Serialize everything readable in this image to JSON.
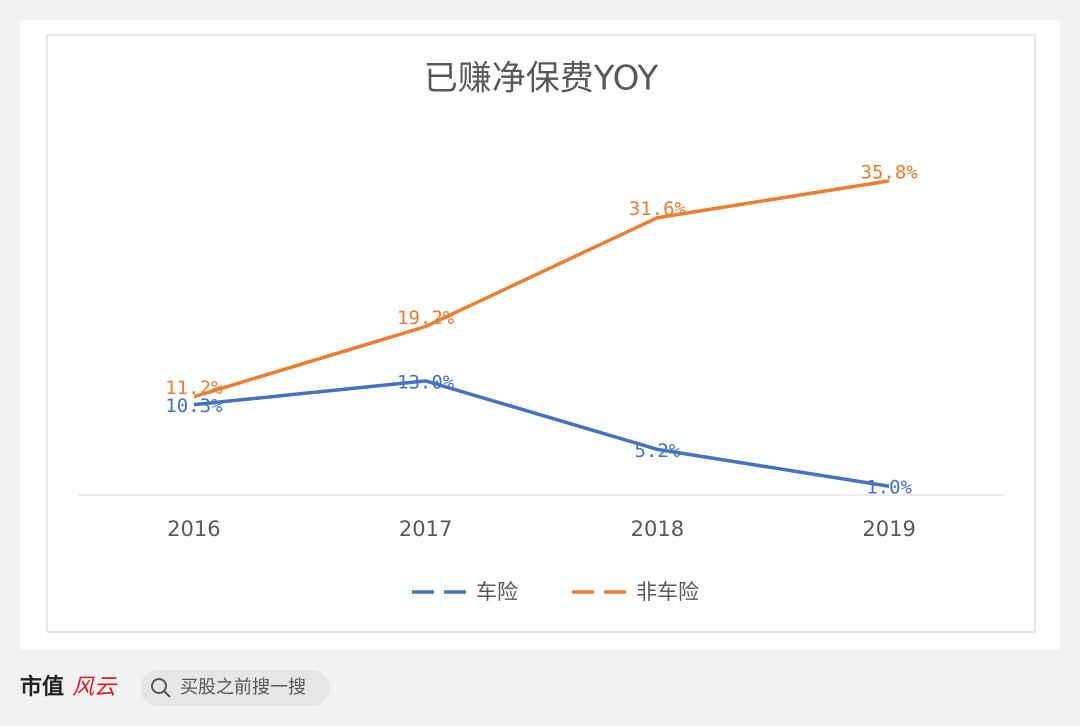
{
  "chart_data": {
    "type": "line",
    "title": "已赚净保费YOY",
    "categories": [
      "2016",
      "2017",
      "2018",
      "2019"
    ],
    "series": [
      {
        "name": "车险",
        "color": "#4472c4",
        "values": [
          10.3,
          13.0,
          5.2,
          1.0
        ],
        "value_labels": [
          "10.3%",
          "13.0%",
          "5.2%",
          "1.0%"
        ]
      },
      {
        "name": "非车险",
        "color": "#ed7d31",
        "values": [
          11.2,
          19.2,
          31.6,
          35.8
        ],
        "value_labels": [
          "11.2%",
          "19.2%",
          "31.6%",
          "35.8%"
        ]
      }
    ],
    "ylim": [
      0,
      40
    ],
    "legend": "bottom"
  },
  "footer": {
    "brand": "市值",
    "brand_mark": "风云",
    "search": "买股之前搜一搜"
  }
}
